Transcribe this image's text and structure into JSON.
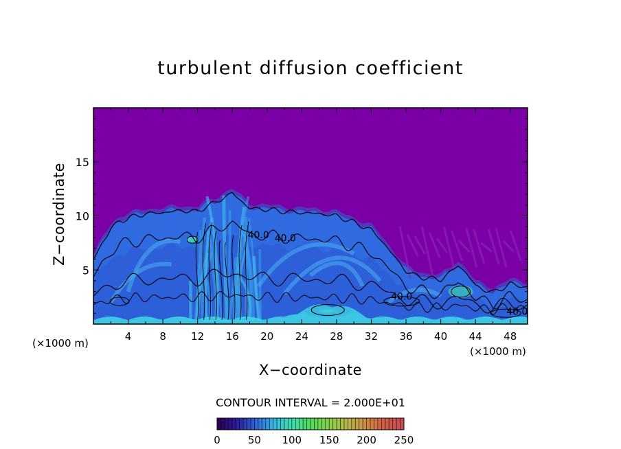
{
  "chart_data": {
    "type": "heatmap",
    "title": "turbulent diffusion coefficient",
    "xlabel": "X−coordinate",
    "ylabel": "Z−coordinate",
    "x_unit_left": "(×1000 m)",
    "x_unit_right": "(×1000 m)",
    "xlim": [
      0,
      50
    ],
    "ylim": [
      0,
      20
    ],
    "xticks": [
      4,
      8,
      12,
      16,
      20,
      24,
      28,
      32,
      36,
      40,
      44,
      48
    ],
    "yticks": [
      5,
      10,
      15
    ],
    "contour_interval_text": "CONTOUR INTERVAL = 2.000E+01",
    "contour_labels": [
      {
        "text": "40.0",
        "x": 19.0,
        "z": 8.2
      },
      {
        "text": "40.0",
        "x": 22.1,
        "z": 7.9
      },
      {
        "text": "40.0",
        "x": 35.5,
        "z": 2.5
      },
      {
        "text": "40.0",
        "x": 48.8,
        "z": 1.1
      }
    ],
    "cloud_top_profile": [
      [
        0,
        6.0
      ],
      [
        1,
        7.6
      ],
      [
        2,
        8.9
      ],
      [
        3,
        9.6
      ],
      [
        4,
        9.9
      ],
      [
        6,
        10.3
      ],
      [
        8,
        10.4
      ],
      [
        10,
        10.6
      ],
      [
        12,
        10.5
      ],
      [
        13,
        11.0
      ],
      [
        14,
        11.3
      ],
      [
        15,
        11.8
      ],
      [
        16,
        12.2
      ],
      [
        17,
        11.5
      ],
      [
        18,
        10.8
      ],
      [
        20,
        10.7
      ],
      [
        22,
        10.5
      ],
      [
        24,
        10.4
      ],
      [
        26,
        10.3
      ],
      [
        28,
        10.1
      ],
      [
        30,
        9.5
      ],
      [
        32,
        8.8
      ],
      [
        33,
        8.0
      ],
      [
        34,
        7.0
      ],
      [
        35,
        6.0
      ],
      [
        36,
        5.0
      ],
      [
        37,
        4.6
      ],
      [
        38,
        4.4
      ],
      [
        40,
        4.2
      ],
      [
        42,
        5.5
      ],
      [
        43,
        4.8
      ],
      [
        44,
        3.6
      ],
      [
        46,
        3.0
      ],
      [
        48,
        3.8
      ],
      [
        50,
        3.5
      ]
    ],
    "colorbar": {
      "min": 0,
      "max": 250,
      "ticks": [
        0,
        50,
        100,
        150,
        200,
        250
      ],
      "colors": [
        "#2a0050",
        "#2e1a9a",
        "#2f5fd6",
        "#34b4e6",
        "#3ee0b0",
        "#4fdc5a",
        "#8ad247",
        "#b9b64a",
        "#cf8c45",
        "#d45a47",
        "#c84a5a"
      ]
    },
    "grid": false,
    "legend": "colorbar-bottom"
  },
  "colors": {
    "background": "#7a00a6",
    "cloud_edge": "#4a3fc0",
    "cloud_body": "#2f6ae0",
    "cloud_bright": "#3ab6ea",
    "surface_layer": "#40d8e2",
    "contour": "#000000"
  }
}
